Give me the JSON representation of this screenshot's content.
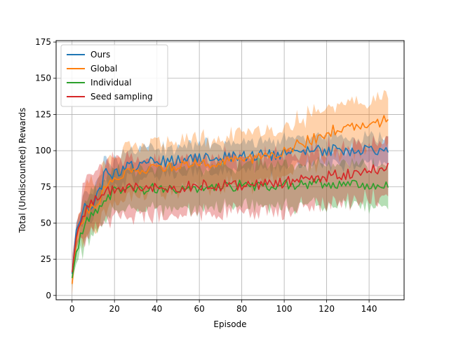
{
  "chart_data": {
    "type": "line",
    "title": "",
    "xlabel": "Episode",
    "ylabel": "Total (Undiscounted) Rewards",
    "xlim": [
      -7.5,
      156.5
    ],
    "ylim": [
      -3,
      176
    ],
    "xticks": [
      0,
      20,
      40,
      60,
      80,
      100,
      120,
      140
    ],
    "yticks": [
      0,
      25,
      50,
      75,
      100,
      125,
      150,
      175
    ],
    "grid": true,
    "legend": {
      "placement": "top-left"
    },
    "series": [
      {
        "name": "Ours",
        "color": "#1f77b4",
        "points": [
          [
            0,
            15
          ],
          [
            2,
            45
          ],
          [
            4,
            55
          ],
          [
            6,
            60
          ],
          [
            8,
            62
          ],
          [
            10,
            65
          ],
          [
            12,
            70
          ],
          [
            14,
            75
          ],
          [
            16,
            88
          ],
          [
            18,
            85
          ],
          [
            20,
            84
          ],
          [
            25,
            88
          ],
          [
            30,
            90
          ],
          [
            35,
            92
          ],
          [
            40,
            92
          ],
          [
            45,
            93
          ],
          [
            50,
            93
          ],
          [
            55,
            94
          ],
          [
            60,
            95
          ],
          [
            65,
            95
          ],
          [
            70,
            96
          ],
          [
            75,
            95
          ],
          [
            80,
            97
          ],
          [
            85,
            96
          ],
          [
            90,
            98
          ],
          [
            95,
            97
          ],
          [
            100,
            98
          ],
          [
            105,
            99
          ],
          [
            110,
            100
          ],
          [
            115,
            100
          ],
          [
            120,
            100
          ],
          [
            125,
            101
          ],
          [
            130,
            100
          ],
          [
            135,
            101
          ],
          [
            140,
            102
          ],
          [
            145,
            101
          ],
          [
            149,
            99
          ]
        ],
        "band_width": 10
      },
      {
        "name": "Global",
        "color": "#ff7f0e",
        "points": [
          [
            0,
            8
          ],
          [
            2,
            38
          ],
          [
            4,
            50
          ],
          [
            6,
            57
          ],
          [
            8,
            60
          ],
          [
            10,
            62
          ],
          [
            12,
            66
          ],
          [
            14,
            68
          ],
          [
            16,
            75
          ],
          [
            18,
            80
          ],
          [
            20,
            82
          ],
          [
            25,
            84
          ],
          [
            30,
            86
          ],
          [
            35,
            88
          ],
          [
            40,
            88
          ],
          [
            45,
            89
          ],
          [
            50,
            90
          ],
          [
            55,
            90
          ],
          [
            60,
            91
          ],
          [
            65,
            91
          ],
          [
            70,
            92
          ],
          [
            75,
            92
          ],
          [
            80,
            93
          ],
          [
            85,
            94
          ],
          [
            90,
            96
          ],
          [
            95,
            98
          ],
          [
            100,
            100
          ],
          [
            105,
            103
          ],
          [
            110,
            106
          ],
          [
            115,
            109
          ],
          [
            120,
            112
          ],
          [
            125,
            115
          ],
          [
            130,
            116
          ],
          [
            135,
            118
          ],
          [
            140,
            120
          ],
          [
            145,
            120
          ],
          [
            149,
            121
          ]
        ],
        "band_width": 18
      },
      {
        "name": "Individual",
        "color": "#2ca02c",
        "points": [
          [
            0,
            12
          ],
          [
            2,
            30
          ],
          [
            4,
            40
          ],
          [
            6,
            48
          ],
          [
            8,
            52
          ],
          [
            10,
            56
          ],
          [
            12,
            60
          ],
          [
            14,
            63
          ],
          [
            16,
            67
          ],
          [
            18,
            70
          ],
          [
            20,
            71
          ],
          [
            25,
            72
          ],
          [
            30,
            73
          ],
          [
            35,
            73
          ],
          [
            40,
            74
          ],
          [
            45,
            74
          ],
          [
            50,
            74
          ],
          [
            55,
            75
          ],
          [
            60,
            75
          ],
          [
            65,
            75
          ],
          [
            70,
            75
          ],
          [
            75,
            75
          ],
          [
            80,
            76
          ],
          [
            85,
            76
          ],
          [
            90,
            76
          ],
          [
            95,
            76
          ],
          [
            100,
            76
          ],
          [
            105,
            76
          ],
          [
            110,
            77
          ],
          [
            115,
            77
          ],
          [
            120,
            77
          ],
          [
            125,
            77
          ],
          [
            130,
            76
          ],
          [
            135,
            76
          ],
          [
            140,
            77
          ],
          [
            145,
            76
          ],
          [
            149,
            75
          ]
        ],
        "band_width": 15
      },
      {
        "name": "Seed sampling",
        "color": "#d62728",
        "points": [
          [
            0,
            16
          ],
          [
            2,
            40
          ],
          [
            4,
            52
          ],
          [
            6,
            58
          ],
          [
            8,
            62
          ],
          [
            10,
            65
          ],
          [
            12,
            68
          ],
          [
            14,
            70
          ],
          [
            16,
            72
          ],
          [
            18,
            73
          ],
          [
            20,
            74
          ],
          [
            25,
            75
          ],
          [
            30,
            75
          ],
          [
            35,
            75
          ],
          [
            40,
            75
          ],
          [
            45,
            75
          ],
          [
            50,
            75
          ],
          [
            55,
            75
          ],
          [
            60,
            76
          ],
          [
            65,
            76
          ],
          [
            70,
            76
          ],
          [
            75,
            76
          ],
          [
            80,
            76
          ],
          [
            85,
            77
          ],
          [
            90,
            77
          ],
          [
            95,
            78
          ],
          [
            100,
            78
          ],
          [
            105,
            79
          ],
          [
            110,
            80
          ],
          [
            115,
            81
          ],
          [
            120,
            82
          ],
          [
            125,
            83
          ],
          [
            130,
            84
          ],
          [
            135,
            85
          ],
          [
            140,
            86
          ],
          [
            145,
            88
          ],
          [
            149,
            90
          ]
        ],
        "band_width": 20
      }
    ]
  }
}
